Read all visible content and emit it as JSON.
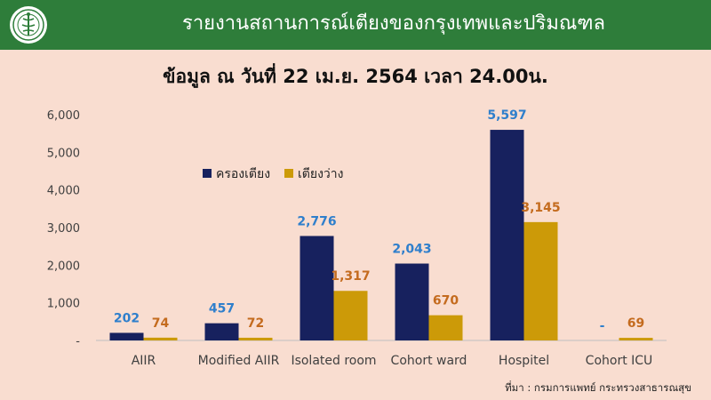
{
  "header": {
    "title": "รายงานสถานการณ์เตียงของกรุงเทพและปริมณฑล"
  },
  "subtitle": "ข้อมูล ณ วันที่ 22 เม.ย. 2564 เวลา 24.00น.",
  "source": "ที่มา : กรมการแพทย์ กระทรวงสาธารณสุข",
  "colors": {
    "occupied": "#17215e",
    "available": "#cc9a08",
    "occupied_label": "#2f7fcc",
    "available_label": "#c46b1e",
    "header": "#2e7d3a",
    "background": "#f9ddd0"
  },
  "icons": {
    "logo": "ministry-of-public-health-seal-icon"
  },
  "chart_data": {
    "type": "bar",
    "categories": [
      "AIIR",
      "Modified AIIR",
      "Isolated room",
      "Cohort ward",
      "Hospitel",
      "Cohort ICU"
    ],
    "series": [
      {
        "name": "ครองเตียง",
        "values": [
          202,
          457,
          2776,
          2043,
          5597,
          null
        ],
        "labels": [
          "202",
          "457",
          "2,776",
          "2,043",
          "5,597",
          "-"
        ]
      },
      {
        "name": "เตียงว่าง",
        "values": [
          74,
          72,
          1317,
          670,
          3145,
          69
        ],
        "labels": [
          "74",
          "72",
          "1,317",
          "670",
          "3,145",
          "69"
        ]
      }
    ],
    "ylim": [
      0,
      6000
    ],
    "yticks": [
      0,
      1000,
      2000,
      3000,
      4000,
      5000,
      6000
    ],
    "ytick_labels": [
      "-",
      "1,000",
      "2,000",
      "3,000",
      "4,000",
      "5,000",
      "6,000"
    ],
    "grid": false,
    "legend": "top-left"
  }
}
